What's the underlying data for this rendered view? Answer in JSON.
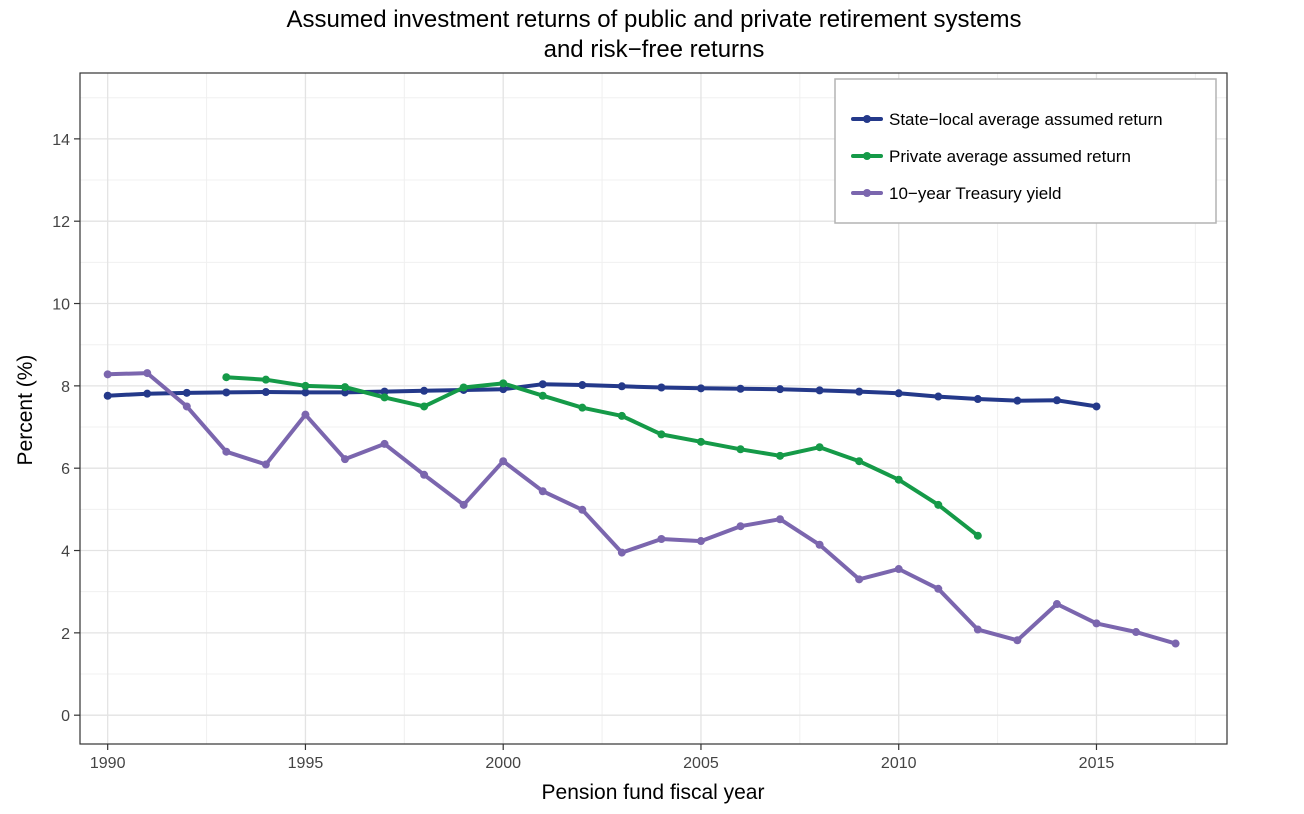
{
  "chart_data": {
    "type": "line",
    "title": "Assumed investment returns of public and private retirement systems",
    "subtitle": "and risk−free returns",
    "xlabel": "Pension fund fiscal year",
    "ylabel": "Percent (%)",
    "xlim": [
      1989.3,
      2018.3
    ],
    "ylim": [
      -0.7,
      15.6
    ],
    "x_ticks": [
      1990,
      1995,
      2000,
      2005,
      2010,
      2015
    ],
    "x_tick_labels": [
      "1990",
      "1995",
      "2000",
      "2005",
      "2010",
      "2015"
    ],
    "y_ticks": [
      0,
      2,
      4,
      6,
      8,
      10,
      12,
      14
    ],
    "y_tick_labels": [
      "0",
      "2",
      "4",
      "6",
      "8",
      "10",
      "12",
      "14"
    ],
    "grid": true,
    "legend_position": "top-right",
    "series": [
      {
        "name": "State−local average assumed return",
        "color": "#24398a",
        "x": [
          1990,
          1991,
          1992,
          1993,
          1994,
          1995,
          1996,
          1997,
          1998,
          1999,
          2000,
          2001,
          2002,
          2003,
          2004,
          2005,
          2006,
          2007,
          2008,
          2009,
          2010,
          2011,
          2012,
          2013,
          2014,
          2015
        ],
        "values": [
          7.76,
          7.81,
          7.83,
          7.84,
          7.85,
          7.84,
          7.84,
          7.86,
          7.88,
          7.9,
          7.92,
          8.04,
          8.02,
          7.99,
          7.96,
          7.94,
          7.93,
          7.92,
          7.89,
          7.86,
          7.82,
          7.74,
          7.68,
          7.64,
          7.65,
          7.5
        ]
      },
      {
        "name": "Private average assumed return",
        "color": "#159a48",
        "x": [
          1993,
          1994,
          1995,
          1996,
          1997,
          1998,
          1999,
          2000,
          2001,
          2002,
          2003,
          2004,
          2005,
          2006,
          2007,
          2008,
          2009,
          2010,
          2011,
          2012
        ],
        "values": [
          8.21,
          8.15,
          8.0,
          7.97,
          7.72,
          7.5,
          7.96,
          8.06,
          7.76,
          7.47,
          7.27,
          6.82,
          6.64,
          6.46,
          6.3,
          6.51,
          6.17,
          5.72,
          5.11,
          4.36
        ]
      },
      {
        "name": "10−year Treasury yield",
        "color": "#7b66ae",
        "x": [
          1990,
          1991,
          1992,
          1993,
          1994,
          1995,
          1996,
          1997,
          1998,
          1999,
          2000,
          2001,
          2002,
          2003,
          2004,
          2005,
          2006,
          2007,
          2008,
          2009,
          2010,
          2011,
          2012,
          2013,
          2014,
          2015,
          2016,
          2017
        ],
        "values": [
          8.28,
          8.31,
          7.5,
          6.4,
          6.09,
          7.3,
          6.22,
          6.59,
          5.84,
          5.11,
          6.17,
          5.44,
          4.99,
          3.95,
          4.28,
          4.23,
          4.59,
          4.76,
          4.14,
          3.3,
          3.55,
          3.07,
          2.08,
          1.82,
          2.7,
          2.23,
          2.02,
          1.74
        ]
      }
    ]
  }
}
